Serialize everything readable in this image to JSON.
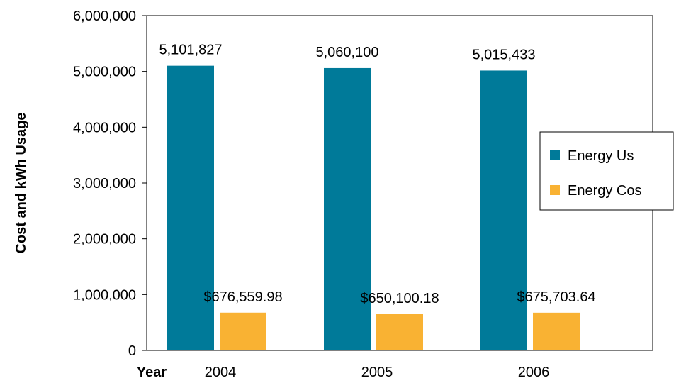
{
  "chart_data": {
    "type": "bar",
    "categories": [
      "2004",
      "2005",
      "2006"
    ],
    "series": [
      {
        "name": "Energy Us",
        "values": [
          5101827,
          5060100,
          5015433
        ],
        "labels": [
          "5,101,827",
          "5,060,100",
          "5,015,433"
        ],
        "color": "#007A99"
      },
      {
        "name": "Energy Cos",
        "values": [
          676559.98,
          650100.18,
          675703.64
        ],
        "labels": [
          "$676,559.98",
          "$650,100.18",
          "$675,703.64"
        ],
        "color": "#F9B233"
      }
    ],
    "xlabel": "Year",
    "ylabel": "Cost and kWh Usage",
    "ylim": [
      0,
      6000000
    ],
    "yticks": [
      0,
      1000000,
      2000000,
      3000000,
      4000000,
      5000000,
      6000000
    ],
    "ytick_labels": [
      "0",
      "1,000,000",
      "2,000,000",
      "3,000,000",
      "4,000,000",
      "5,000,000",
      "6,000,000"
    ],
    "grid": false,
    "legend": "right"
  }
}
